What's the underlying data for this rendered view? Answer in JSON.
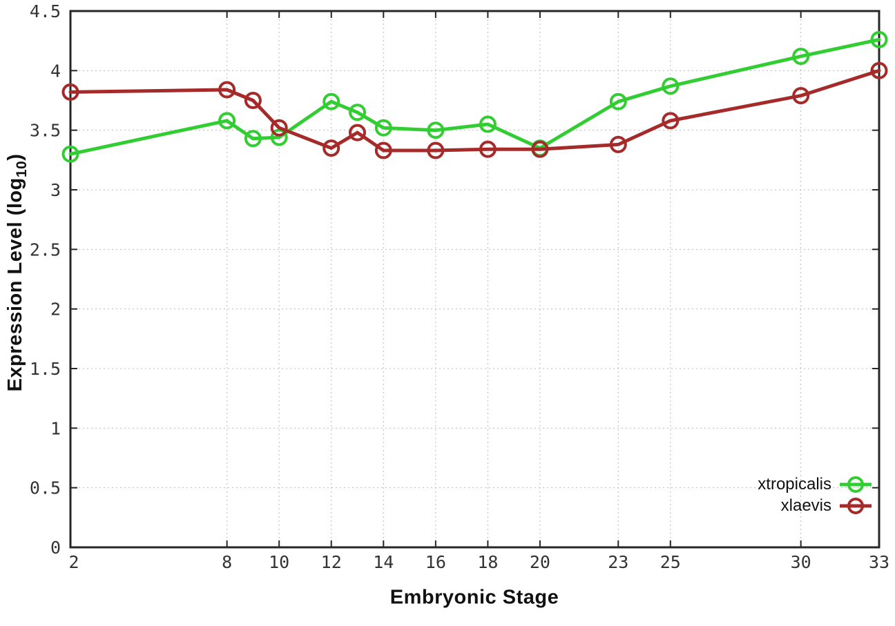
{
  "chart_data": {
    "type": "line",
    "title": "",
    "xlabel": "Embryonic Stage",
    "ylabel": "Expression Level (log10)",
    "ylabel_parts": {
      "main": "Expression Level (log",
      "sub": "10",
      "close": ")"
    },
    "xlim": [
      2,
      33
    ],
    "ylim": [
      0,
      4.5
    ],
    "grid": true,
    "legend_position": "bottom-right",
    "x": [
      2,
      8,
      9,
      10,
      12,
      13,
      14,
      16,
      18,
      20,
      23,
      25,
      30,
      33
    ],
    "xtick_values": [
      2,
      8,
      10,
      12,
      14,
      16,
      18,
      20,
      23,
      25,
      30,
      33
    ],
    "xtick_labels": [
      "2",
      "8",
      "10",
      "12",
      "14",
      "16",
      "18",
      "20",
      "23",
      "25",
      "30",
      "33"
    ],
    "ytick_values": [
      0,
      0.5,
      1,
      1.5,
      2,
      2.5,
      3,
      3.5,
      4,
      4.5
    ],
    "ytick_labels": [
      "0",
      "0.5",
      "1",
      "1.5",
      "2",
      "2.5",
      "3",
      "3.5",
      "4",
      "4.5"
    ],
    "series": [
      {
        "name": "xtropicalis",
        "color": "#32cd32",
        "marker": "open-circle",
        "values": [
          3.3,
          3.58,
          3.43,
          3.44,
          3.74,
          3.65,
          3.52,
          3.5,
          3.55,
          3.35,
          3.74,
          3.87,
          4.12,
          4.26
        ]
      },
      {
        "name": "xlaevis",
        "color": "#a52a2a",
        "marker": "open-circle",
        "values": [
          3.82,
          3.84,
          3.75,
          3.52,
          3.35,
          3.48,
          3.33,
          3.33,
          3.34,
          3.34,
          3.38,
          3.58,
          3.79,
          4.0
        ]
      }
    ],
    "colors": {
      "grid": "#b9b9b9",
      "axis": "#262626",
      "tick_text": "#333333",
      "legend_text": "#111111",
      "background": "#ffffff"
    }
  }
}
